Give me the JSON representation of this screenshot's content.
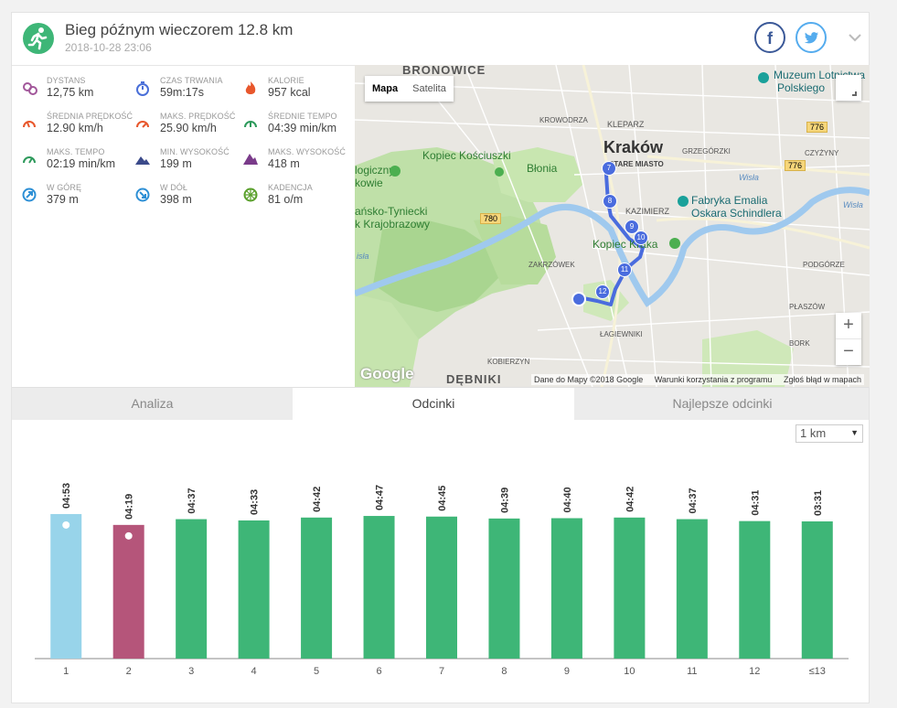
{
  "activity": {
    "title": "Bieg późnym wieczorem 12.8 km",
    "date": "2018-10-28 23:06",
    "icon": "running-icon",
    "accent": "#3eb677"
  },
  "stats": [
    {
      "label": "DYSTANS",
      "value": "12,75 km",
      "icon": "distance-icon",
      "color": "#a2579a"
    },
    {
      "label": "CZAS TRWANIA",
      "value": "59m:17s",
      "icon": "stopwatch-icon",
      "color": "#4a6fd8"
    },
    {
      "label": "KALORIE",
      "value": "957 kcal",
      "icon": "flame-icon",
      "color": "#e8572c"
    },
    {
      "label": "ŚREDNIA PRĘDKOŚĆ",
      "value": "12.90 km/h",
      "icon": "speedometer-icon",
      "color": "#e8572c"
    },
    {
      "label": "MAKS. PRĘDKOŚĆ",
      "value": "25.90 km/h",
      "icon": "speedometer-max-icon",
      "color": "#e8572c"
    },
    {
      "label": "ŚREDNIE TEMPO",
      "value": "04:39 min/km",
      "icon": "pace-icon",
      "color": "#2e9a5c"
    },
    {
      "label": "MAKS. TEMPO",
      "value": "02:19 min/km",
      "icon": "pace-max-icon",
      "color": "#2e9a5c"
    },
    {
      "label": "MIN. WYSOKOŚĆ",
      "value": "199 m",
      "icon": "mountain-low-icon",
      "color": "#3b4a8a"
    },
    {
      "label": "MAKS. WYSOKOŚĆ",
      "value": "418 m",
      "icon": "mountain-high-icon",
      "color": "#7a3b8a"
    },
    {
      "label": "W GÓRĘ",
      "value": "379 m",
      "icon": "arrow-up-icon",
      "color": "#2d8fd5"
    },
    {
      "label": "W DÓŁ",
      "value": "398 m",
      "icon": "arrow-down-icon",
      "color": "#2d8fd5"
    },
    {
      "label": "KADENCJA",
      "value": "81 o/m",
      "icon": "cadence-icon",
      "color": "#5aa02c"
    }
  ],
  "map": {
    "type_tabs": [
      "Mapa",
      "Satelita"
    ],
    "labels": {
      "bronowice": "BRONOWICE",
      "krakow": "Kraków",
      "stare_miasto": "STARE MIASTO",
      "kleparz": "KLEPARZ",
      "krowodrza": "KROWODRZA",
      "grzegorzki": "GRZEGÓRZKI",
      "czyzyny": "CZYŻYNY",
      "kazimierz": "KAZIMIERZ",
      "podgorze": "PODGÓRZE",
      "zakrzowek": "ZAKRZÓWEK",
      "lagiewniki": "ŁAGIEWNIKI",
      "kobierzyn": "KOBIERZYN",
      "debniki": "DĘBNIKI",
      "blonia": "Błonia",
      "kopiec_kosciuszki": "Kopiec Kościuszki",
      "kopiec_kraka": "Kopiec Kraka",
      "fabryka_1": "Fabryka Emalia",
      "fabryka_2": "Oskara Schindlera",
      "muzeum_1": "Muzeum Lotnictwa",
      "muzeum_2": "Polskiego",
      "bielansko_1": "ańsko-Tyniecki",
      "bielansko_2": "k Krajobrazowy",
      "zoo_1": "logiczny",
      "zoo_2": "kowie",
      "wisla_1": "Wisła",
      "wisla_2": "Wisła",
      "wisla_3": "isła",
      "plaszow": "PŁASZÓW",
      "swoszowice": "BORK",
      "road_780": "780",
      "road_776a": "776",
      "road_776b": "776"
    },
    "route_markers": [
      "7",
      "8",
      "9",
      "10",
      "11",
      "12"
    ],
    "google": "Google",
    "footer": [
      "Dane do Mapy ©2018 Google",
      "Warunki korzystania z programu",
      "Zgłoś błąd w mapach"
    ],
    "zoom_in": "+",
    "zoom_out": "−"
  },
  "tabs": [
    {
      "label": "Analiza",
      "active": false
    },
    {
      "label": "Odcinki",
      "active": true
    },
    {
      "label": "Najlepsze odcinki",
      "active": false
    }
  ],
  "split_select": {
    "value": "1 km"
  },
  "chart_data": {
    "type": "bar",
    "title": "",
    "xlabel": "",
    "ylabel": "",
    "categories": [
      "1",
      "2",
      "3",
      "4",
      "5",
      "6",
      "7",
      "8",
      "9",
      "10",
      "11",
      "12",
      "≤13"
    ],
    "values": [
      293,
      259,
      277,
      273,
      282,
      287,
      285,
      279,
      280,
      282,
      277,
      271,
      211
    ],
    "value_labels": [
      "04:53",
      "04:19",
      "04:37",
      "04:33",
      "04:42",
      "04:47",
      "04:45",
      "04:39",
      "04:40",
      "04:42",
      "04:37",
      "04:31",
      "03:31"
    ],
    "value_unit": "seconds per km (pace)",
    "highlight": {
      "slowest": 0,
      "fastest": 1
    },
    "colors": {
      "default": "#3eb677",
      "slowest": "#98d4ea",
      "fastest": "#b5557a"
    },
    "icons": {
      "slowest": "turtle-icon",
      "fastest": "rabbit-icon"
    }
  }
}
